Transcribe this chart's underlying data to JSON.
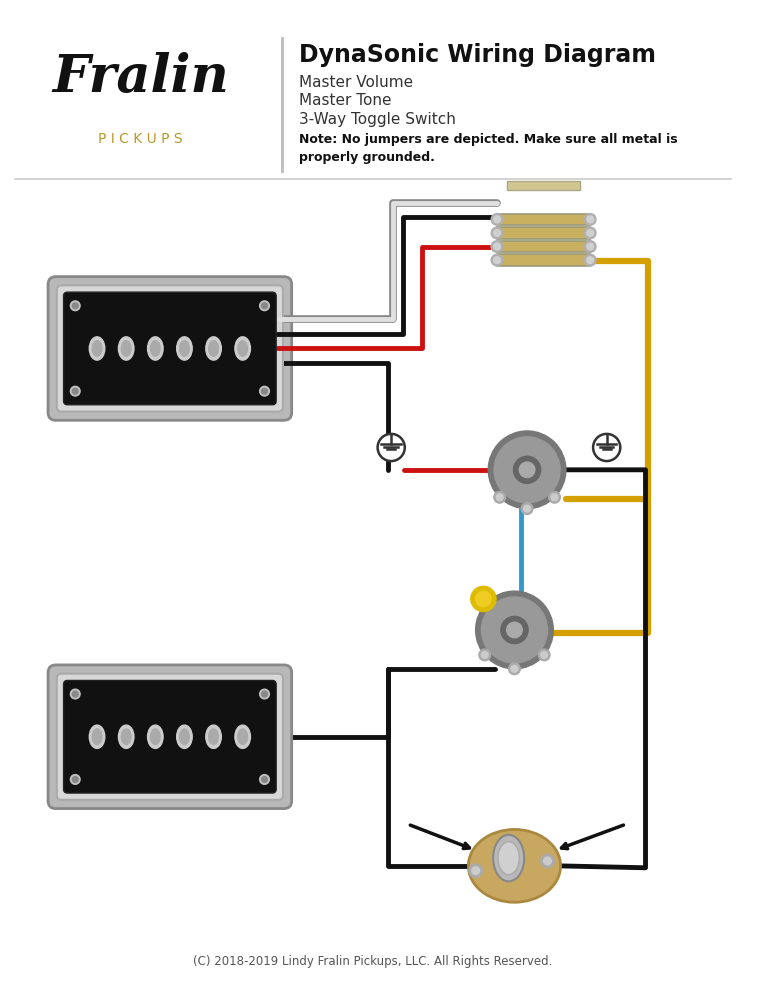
{
  "title": "DynaSonic Wiring Diagram",
  "subtitle_lines": [
    "Master Volume",
    "Master Tone",
    "3-Way Toggle Switch"
  ],
  "note": "Note: No jumpers are depicted. Make sure all metal is\nproperly grounded.",
  "copyright": "(C) 2018-2019 Lindy Fralin Pickups, LLC. All Rights Reserved.",
  "bg_color": "#ffffff",
  "header_line_color": "#333333",
  "title_color": "#111111",
  "subtitle_color": "#333333",
  "note_color": "#111111",
  "copyright_color": "#555555",
  "fralin_script_color": "#111111",
  "pickups_text_color": "#b8982a",
  "wire_black": "#111111",
  "wire_red": "#cc1111",
  "wire_white": "#dddddd",
  "wire_yellow": "#d4a000",
  "wire_blue": "#3399cc",
  "component_silver": "#aaaaaa",
  "component_dark": "#444444",
  "component_tan": "#c8b060"
}
